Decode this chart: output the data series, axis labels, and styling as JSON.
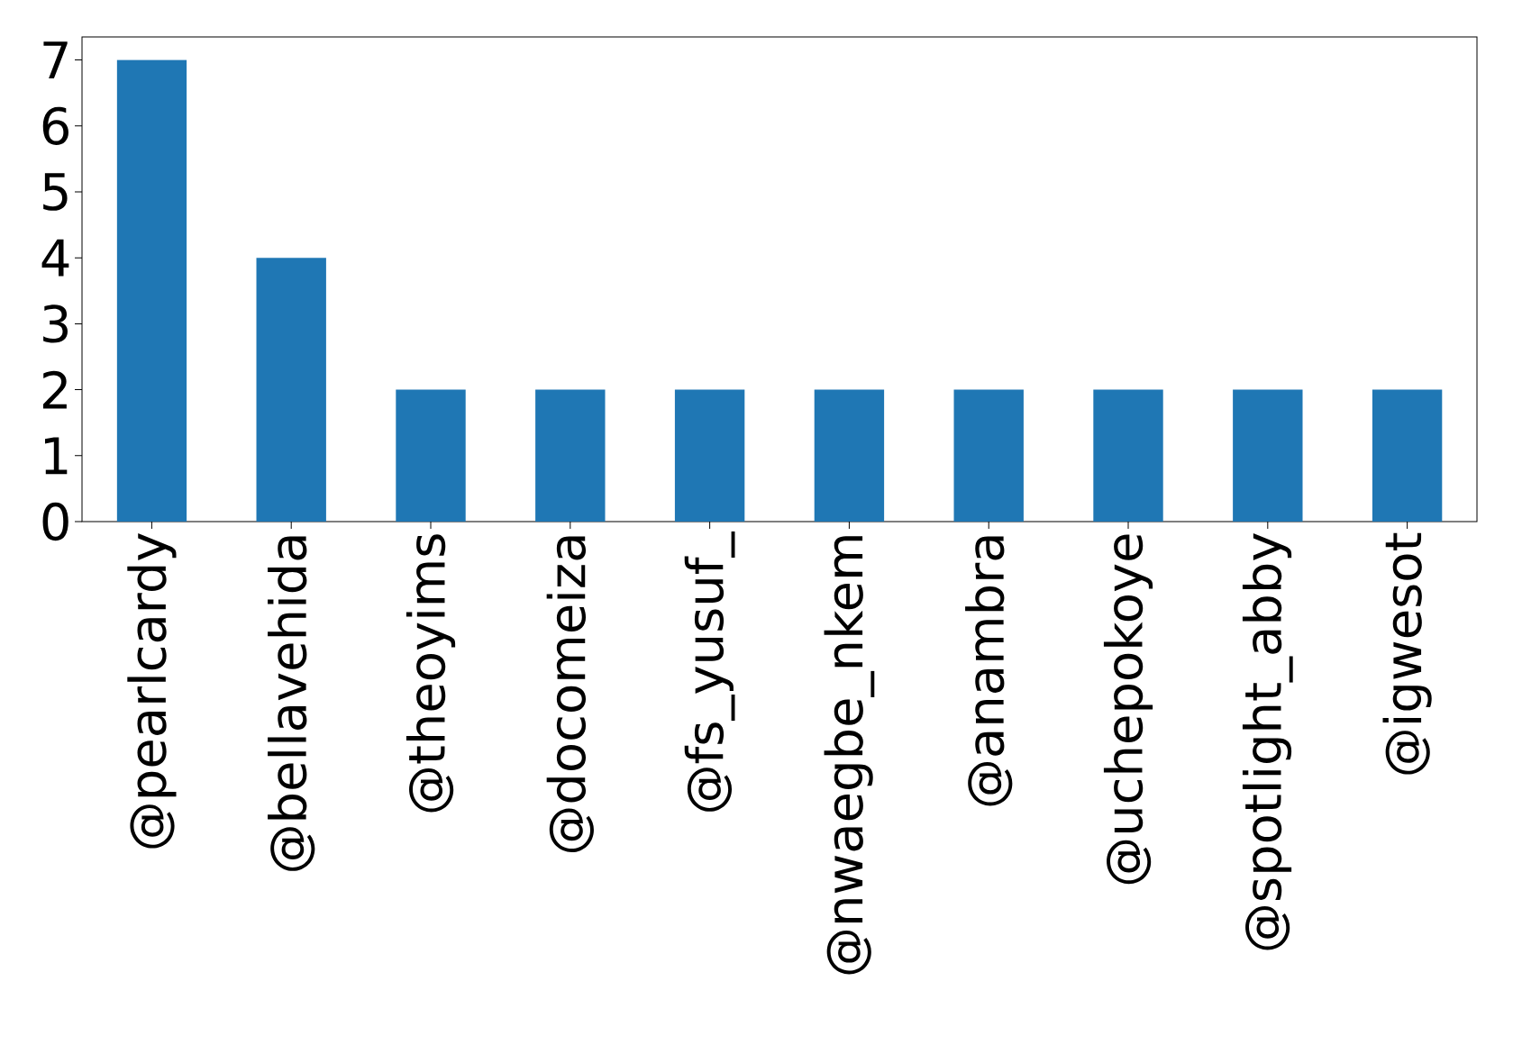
{
  "chart_data": {
    "type": "bar",
    "categories": [
      "@pearlcardy",
      "@bellavehida",
      "@theoyims",
      "@docomeiza",
      "@fs_yusuf_",
      "@nwaegbe_nkem",
      "@anambra",
      "@uchepokoye",
      "@spotlight_abby",
      "@igwesot"
    ],
    "values": [
      7,
      4,
      2,
      2,
      2,
      2,
      2,
      2,
      2,
      2
    ],
    "color": "#1f77b4",
    "ylim": [
      0,
      7.35
    ],
    "yticks": [
      0,
      1,
      2,
      3,
      4,
      5,
      6,
      7
    ],
    "grid": false
  }
}
